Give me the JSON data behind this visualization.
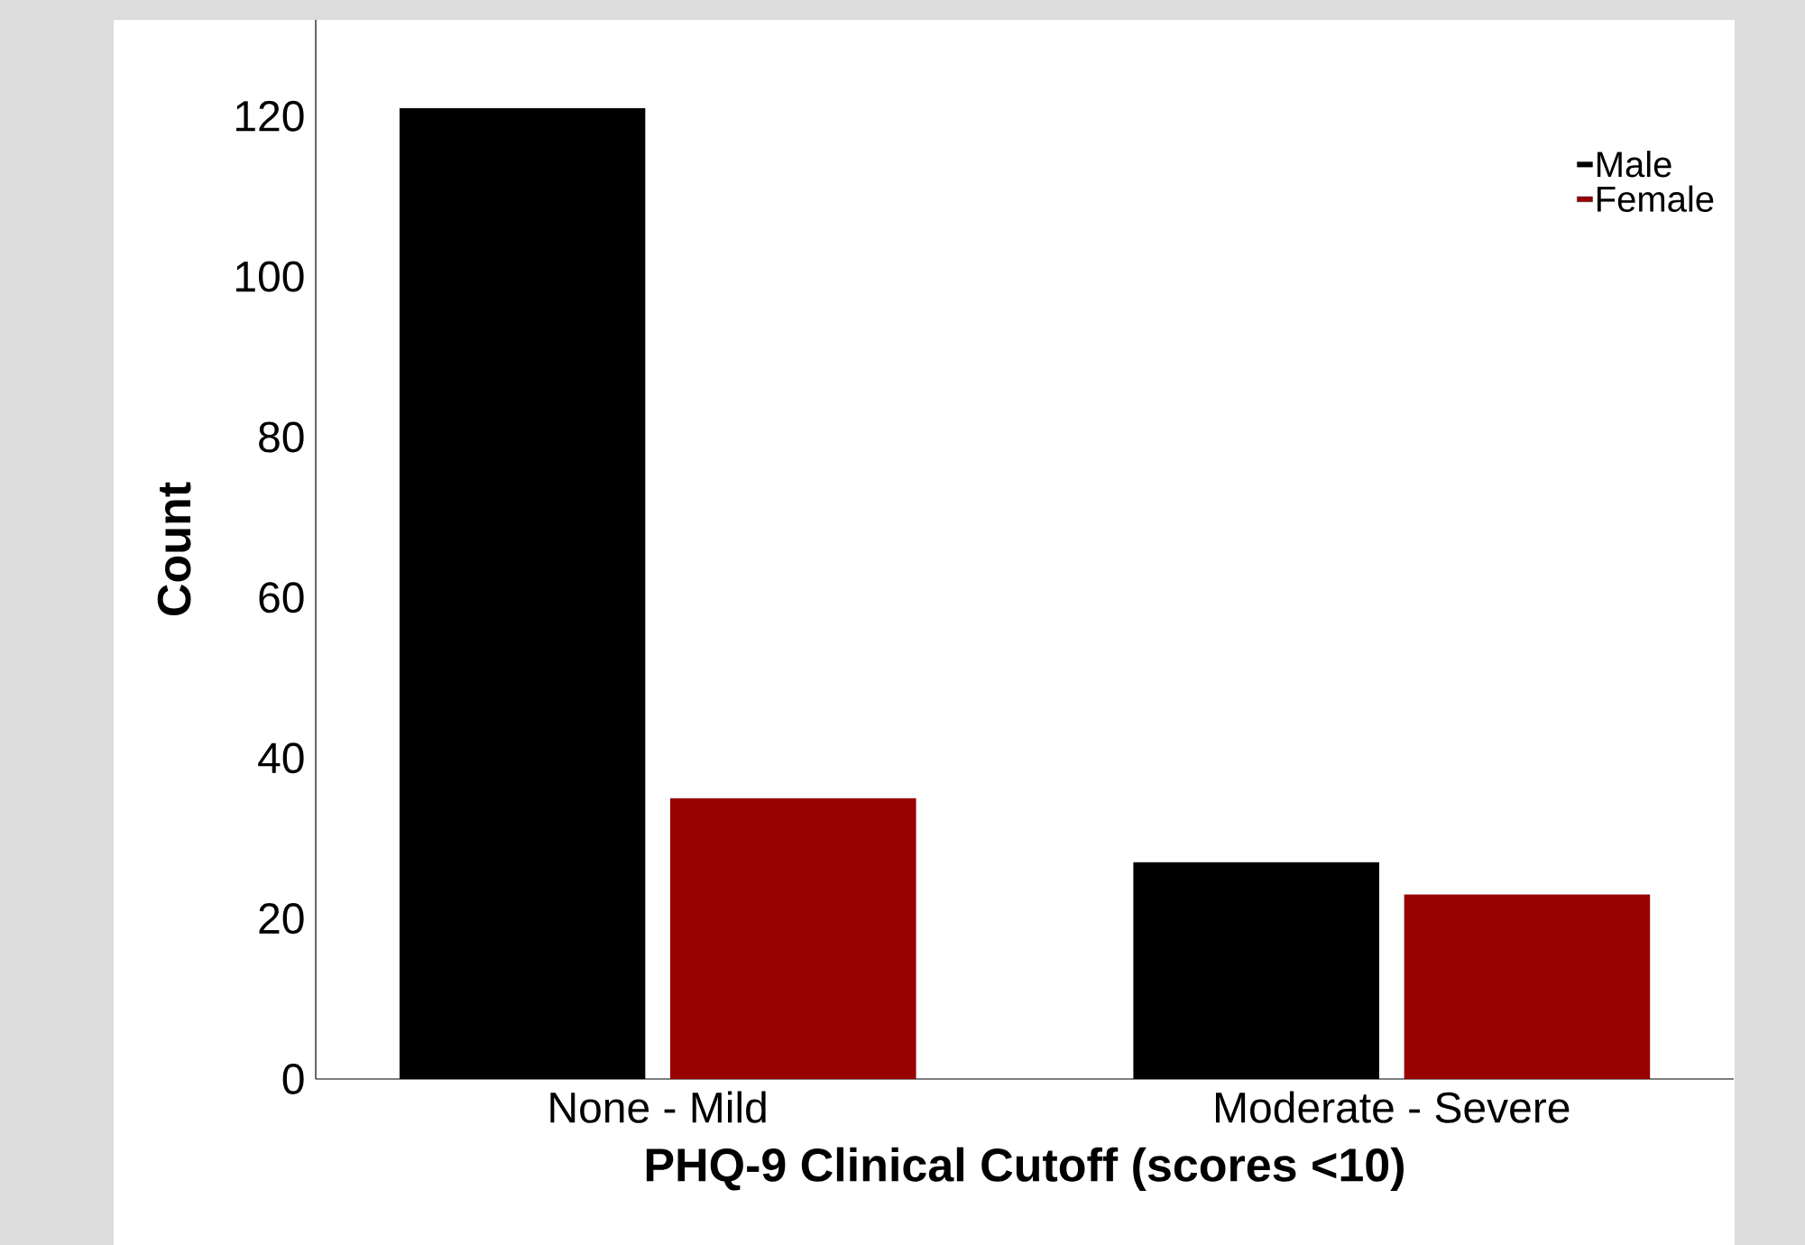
{
  "chart_data": {
    "type": "bar",
    "xlabel": "PHQ-9 Clinical Cutoff (scores <10)",
    "ylabel": "Count",
    "categories": [
      "None - Mild",
      "Moderate - Severe"
    ],
    "series": [
      {
        "name": "Male",
        "color": "#000000",
        "values": [
          121,
          27
        ]
      },
      {
        "name": "Female",
        "color": "#990000",
        "values": [
          35,
          23
        ]
      }
    ],
    "ylim": [
      0,
      132
    ],
    "yticks": [
      0,
      20,
      40,
      60,
      80,
      100,
      120
    ],
    "legend": "top right"
  }
}
